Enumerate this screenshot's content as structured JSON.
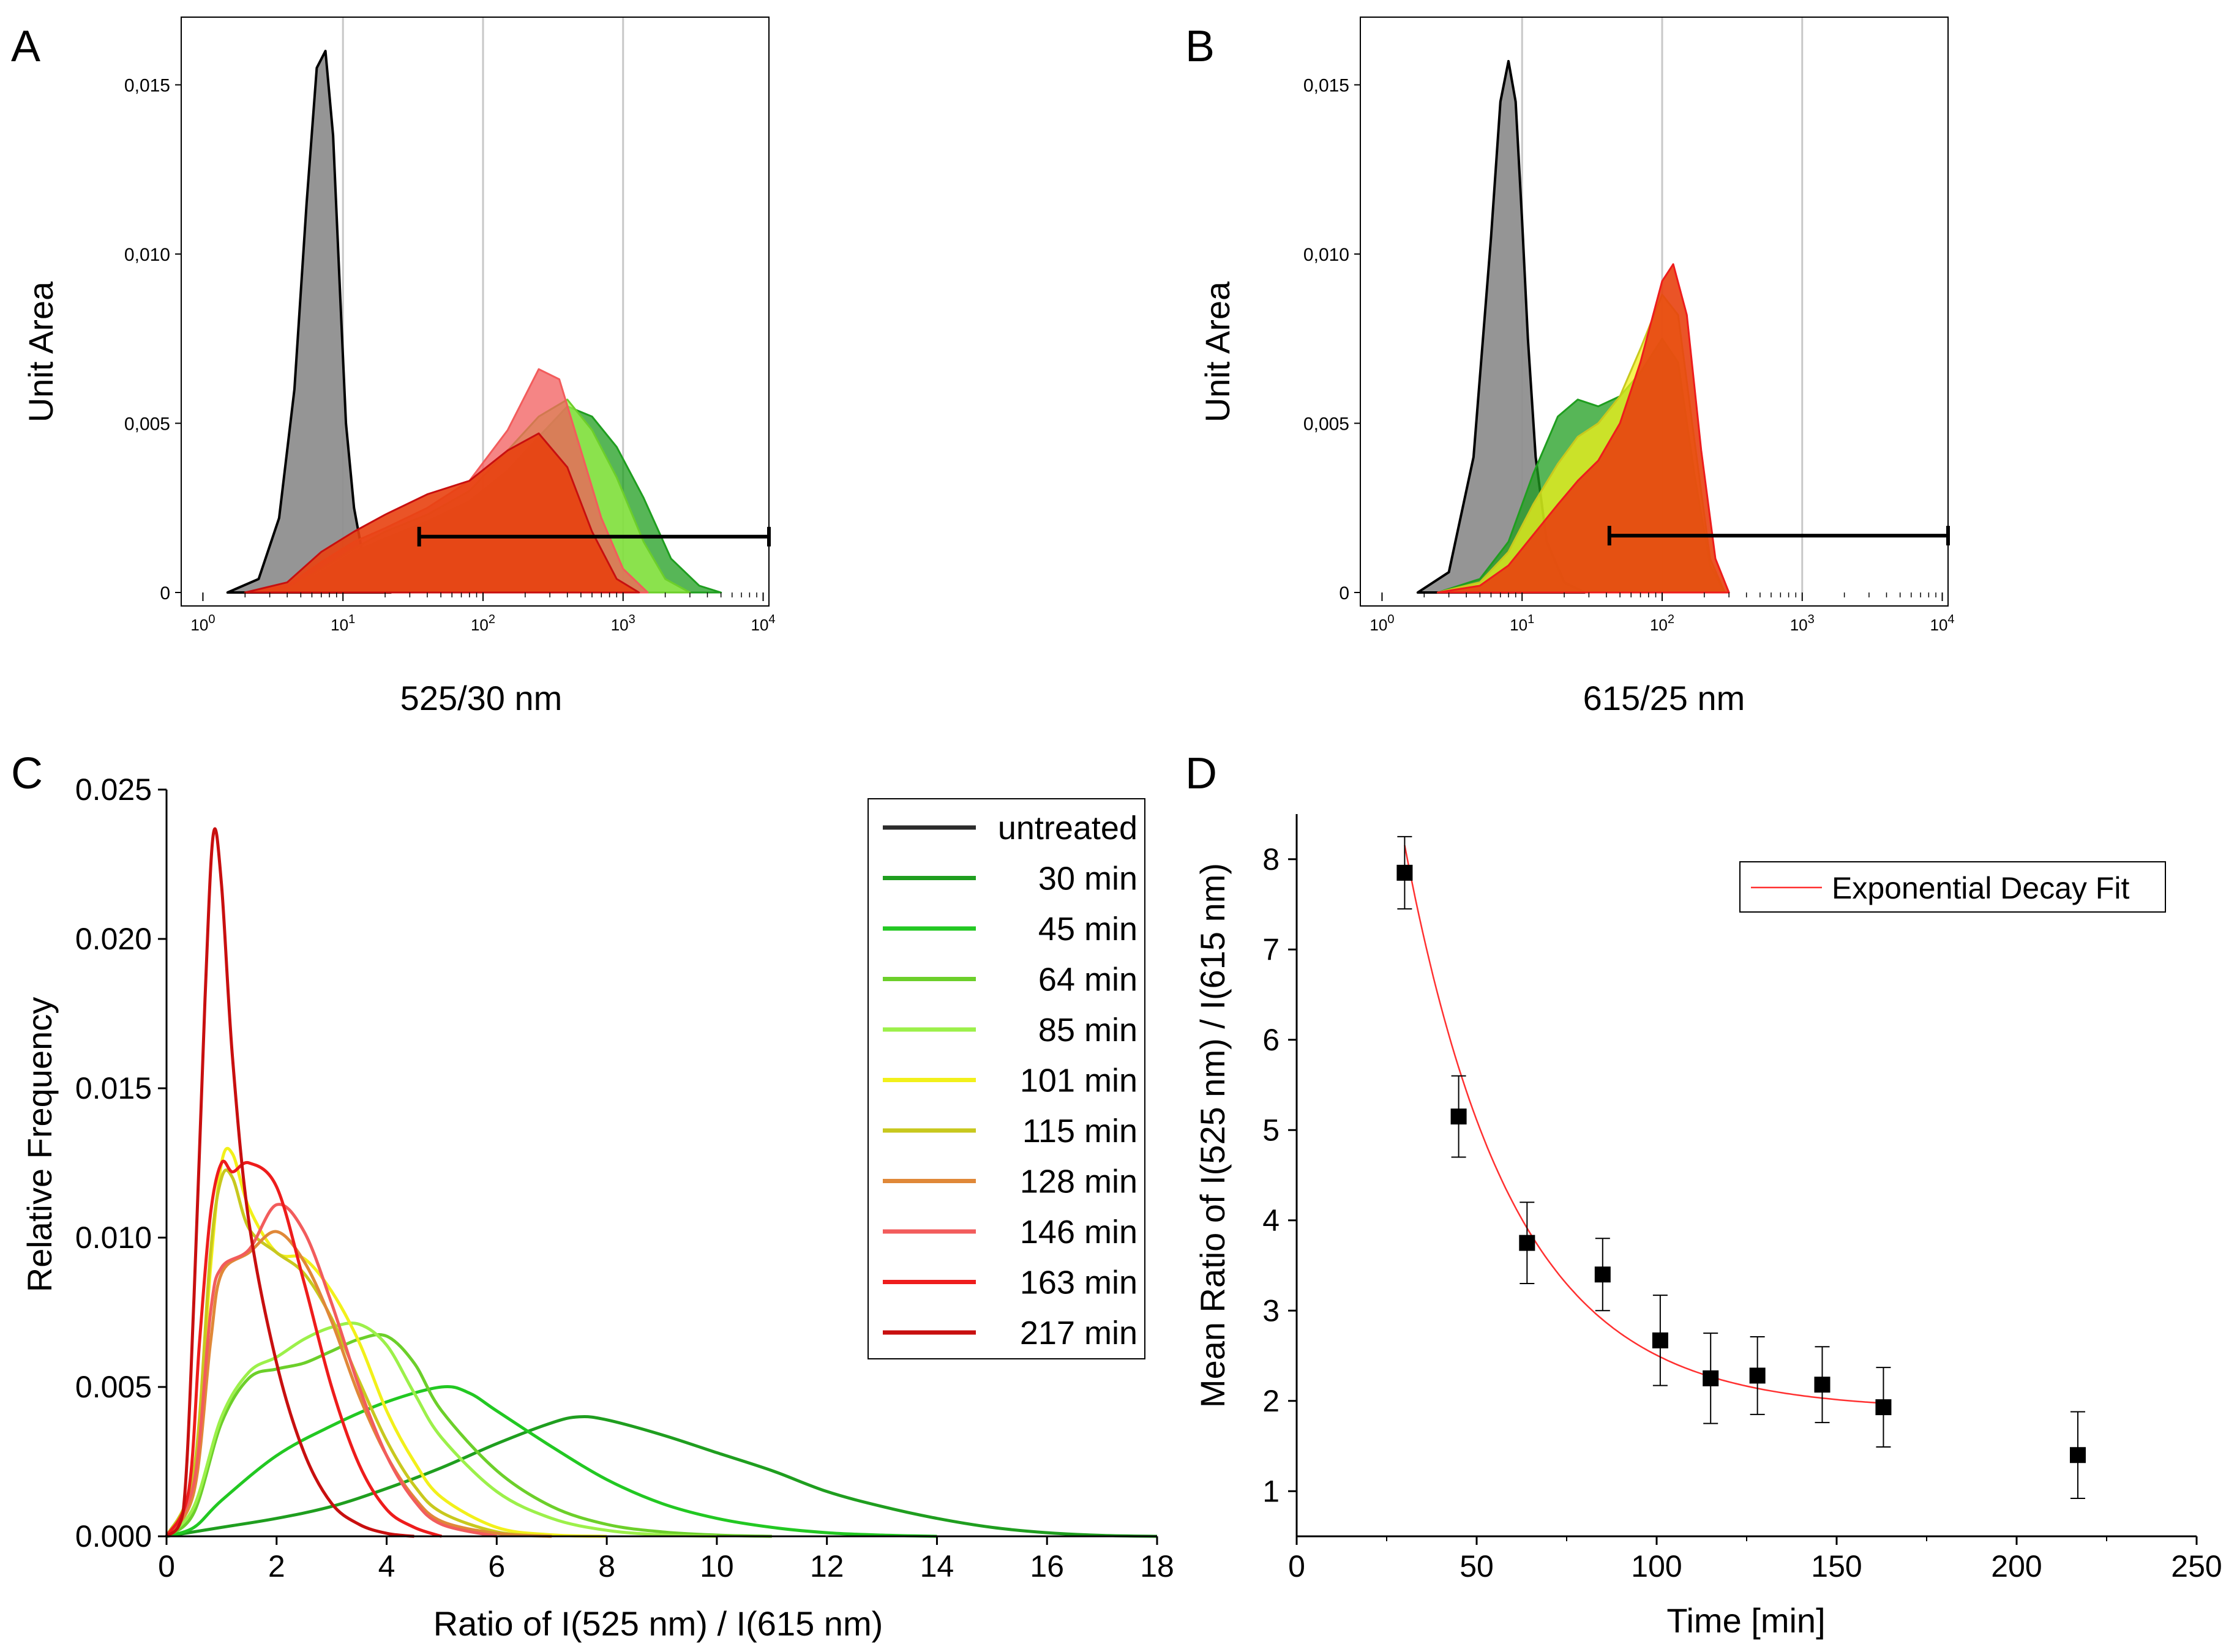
{
  "colors": {
    "untreated": "#2b2b2b",
    "t30": "#1f9e1f",
    "t45": "#22c822",
    "t64": "#6ccf2a",
    "t85": "#9cf04a",
    "t101": "#f2f01a",
    "t115": "#c8c81e",
    "t128": "#e08838",
    "t146": "#f25c5c",
    "t163": "#ee1c1c",
    "t217": "#c80f0f",
    "fit": "#ff3030",
    "hist_gray": "#8f8f8f",
    "hist_red": "#e8410f"
  },
  "chart_data": [
    {
      "panel": "A",
      "label": "A",
      "type": "area",
      "title": "",
      "xlabel": "525/30 nm",
      "ylabel": "Unit Area",
      "xscale": "log",
      "xlim": [
        0.7,
        11000
      ],
      "ylim": [
        0,
        0.017
      ],
      "yticks": [
        {
          "v": 0,
          "label": "0"
        },
        {
          "v": 0.005,
          "label": "0,005"
        },
        {
          "v": 0.01,
          "label": "0,010"
        },
        {
          "v": 0.015,
          "label": "0,015"
        }
      ],
      "xticks": [
        {
          "v": 1,
          "base": "10",
          "exp": "0"
        },
        {
          "v": 10,
          "base": "10",
          "exp": "1"
        },
        {
          "v": 100,
          "base": "10",
          "exp": "2"
        },
        {
          "v": 1000,
          "base": "10",
          "exp": "3"
        },
        {
          "v": 10000,
          "base": "10",
          "exp": "4"
        }
      ],
      "gridlines_x": [
        10,
        100,
        1000
      ],
      "gate": {
        "x_start": 35,
        "x_end": 11000,
        "y": 0.00165
      },
      "series": [
        {
          "name": "untreated",
          "x": [
            1.5,
            2.5,
            3.5,
            4.5,
            5.5,
            6.5,
            7.5,
            8.5,
            9.5,
            10.5,
            12,
            14,
            17,
            22
          ],
          "y": [
            0,
            0.0004,
            0.0022,
            0.006,
            0.0115,
            0.0155,
            0.016,
            0.0135,
            0.009,
            0.005,
            0.0025,
            0.001,
            0.0003,
            0
          ]
        },
        {
          "name": "30 min",
          "x": [
            2,
            4,
            7,
            12,
            20,
            40,
            80,
            150,
            250,
            400,
            600,
            900,
            1400,
            2200,
            3500,
            5000
          ],
          "y": [
            0,
            0.0001,
            0.0006,
            0.0012,
            0.0016,
            0.0021,
            0.0027,
            0.0036,
            0.0046,
            0.0055,
            0.0052,
            0.0043,
            0.0028,
            0.001,
            0.0002,
            0
          ]
        },
        {
          "name": "85 min",
          "x": [
            2,
            4,
            7,
            12,
            20,
            40,
            80,
            150,
            250,
            400,
            600,
            900,
            1400,
            2000,
            3000
          ],
          "y": [
            0,
            0.0001,
            0.0007,
            0.0013,
            0.0018,
            0.0023,
            0.003,
            0.0042,
            0.0052,
            0.0057,
            0.0048,
            0.0034,
            0.0015,
            0.0004,
            0
          ]
        },
        {
          "name": "146 min",
          "x": [
            2,
            4,
            7,
            12,
            20,
            40,
            80,
            150,
            250,
            350,
            500,
            700,
            1000,
            1500
          ],
          "y": [
            0,
            0.0002,
            0.0009,
            0.0015,
            0.0019,
            0.0025,
            0.0033,
            0.0048,
            0.0066,
            0.0063,
            0.0042,
            0.0022,
            0.0007,
            0
          ]
        },
        {
          "name": "217 min",
          "x": [
            2,
            4,
            7,
            12,
            20,
            40,
            80,
            150,
            250,
            400,
            600,
            900,
            1300
          ],
          "y": [
            0,
            0.0003,
            0.0012,
            0.0018,
            0.0023,
            0.0029,
            0.0033,
            0.0042,
            0.0047,
            0.0037,
            0.0018,
            0.0004,
            0
          ]
        }
      ]
    },
    {
      "panel": "B",
      "label": "B",
      "type": "area",
      "title": "",
      "xlabel": "615/25 nm",
      "ylabel": "Unit Area",
      "xscale": "log",
      "xlim": [
        0.7,
        11000
      ],
      "ylim": [
        0,
        0.017
      ],
      "yticks": [
        {
          "v": 0,
          "label": "0"
        },
        {
          "v": 0.005,
          "label": "0,005"
        },
        {
          "v": 0.01,
          "label": "0,010"
        },
        {
          "v": 0.015,
          "label": "0,015"
        }
      ],
      "xticks": [
        {
          "v": 1,
          "base": "10",
          "exp": "0"
        },
        {
          "v": 10,
          "base": "10",
          "exp": "1"
        },
        {
          "v": 100,
          "base": "10",
          "exp": "2"
        },
        {
          "v": 1000,
          "base": "10",
          "exp": "3"
        },
        {
          "v": 10000,
          "base": "10",
          "exp": "4"
        }
      ],
      "gridlines_x": [
        10,
        100,
        1000
      ],
      "gate": {
        "x_start": 42,
        "x_end": 11000,
        "y": 0.00168
      },
      "series": [
        {
          "name": "untreated",
          "x": [
            1.8,
            3,
            4.5,
            6,
            7,
            8,
            9,
            10,
            11,
            12.5,
            15,
            20,
            28
          ],
          "y": [
            0,
            0.0006,
            0.004,
            0.0105,
            0.0145,
            0.0157,
            0.0145,
            0.011,
            0.0075,
            0.004,
            0.0015,
            0.0003,
            0
          ]
        },
        {
          "name": "30 min",
          "x": [
            2.5,
            5,
            8,
            12,
            18,
            25,
            35,
            50,
            70,
            100,
            130,
            170,
            220,
            280
          ],
          "y": [
            0,
            0.0004,
            0.0015,
            0.0035,
            0.0052,
            0.0057,
            0.0055,
            0.0058,
            0.0065,
            0.0075,
            0.0068,
            0.0035,
            0.0008,
            0
          ]
        },
        {
          "name": "101 min",
          "x": [
            2.5,
            5,
            8,
            12,
            18,
            25,
            35,
            50,
            70,
            100,
            130,
            170,
            220,
            280
          ],
          "y": [
            0,
            0.0003,
            0.0012,
            0.0026,
            0.0038,
            0.0046,
            0.005,
            0.0058,
            0.0072,
            0.0088,
            0.0082,
            0.0045,
            0.001,
            0
          ]
        },
        {
          "name": "163 min",
          "x": [
            2.5,
            5,
            8,
            12,
            18,
            25,
            35,
            50,
            70,
            100,
            120,
            150,
            190,
            240,
            300
          ],
          "y": [
            0,
            0.0002,
            0.0008,
            0.0017,
            0.0026,
            0.0033,
            0.0039,
            0.005,
            0.0068,
            0.0092,
            0.0097,
            0.0082,
            0.0042,
            0.001,
            0
          ]
        }
      ]
    },
    {
      "panel": "C",
      "label": "C",
      "type": "line",
      "title": "",
      "xlabel": "Ratio of I(525 nm) / I(615 nm)",
      "ylabel": "Relative Frequency",
      "xlim": [
        0,
        18
      ],
      "ylim": [
        0,
        0.025
      ],
      "xticks": [
        0,
        2,
        4,
        6,
        8,
        10,
        12,
        14,
        16,
        18
      ],
      "yticks": [
        {
          "v": 0,
          "label": "0.000"
        },
        {
          "v": 0.005,
          "label": "0.005"
        },
        {
          "v": 0.01,
          "label": "0.010"
        },
        {
          "v": 0.015,
          "label": "0.015"
        },
        {
          "v": 0.02,
          "label": "0.020"
        },
        {
          "v": 0.025,
          "label": "0.025"
        }
      ],
      "legend": [
        "untreated",
        "30 min",
        "45 min",
        "64 min",
        "85 min",
        "101 min",
        "115 min",
        "128 min",
        "146 min",
        "163 min",
        "217 min"
      ],
      "series": [
        {
          "name": "untreated",
          "x": [
            0,
            18
          ],
          "y": [
            0,
            0
          ]
        },
        {
          "name": "30 min",
          "x": [
            0,
            1,
            2,
            3,
            4,
            5,
            6,
            7,
            7.5,
            8,
            9,
            10,
            11,
            12,
            13,
            14,
            15,
            16,
            17,
            18
          ],
          "y": [
            0,
            0.0003,
            0.0006,
            0.001,
            0.0016,
            0.0023,
            0.0031,
            0.0038,
            0.004,
            0.0039,
            0.0034,
            0.0028,
            0.0022,
            0.0015,
            0.001,
            0.0006,
            0.0003,
            0.00012,
            3e-05,
            0
          ]
        },
        {
          "name": "45 min",
          "x": [
            0,
            0.5,
            1,
            2,
            3,
            4,
            5,
            5.5,
            6,
            7,
            8,
            9,
            10,
            11,
            12,
            13,
            14
          ],
          "y": [
            0,
            0.0003,
            0.0012,
            0.0027,
            0.0037,
            0.0045,
            0.005,
            0.0048,
            0.0042,
            0.003,
            0.0019,
            0.0011,
            0.0006,
            0.0003,
            0.00012,
            4e-05,
            0
          ]
        },
        {
          "name": "64 min",
          "x": [
            0,
            0.5,
            1,
            1.5,
            2,
            2.5,
            3,
            3.5,
            4,
            4.5,
            5,
            6,
            7,
            8,
            9,
            10,
            11
          ],
          "y": [
            0,
            0.0008,
            0.0038,
            0.0053,
            0.0056,
            0.0058,
            0.0062,
            0.0066,
            0.0067,
            0.0058,
            0.0042,
            0.0022,
            0.001,
            0.0004,
            0.00015,
            4e-05,
            0
          ]
        },
        {
          "name": "85 min",
          "x": [
            0,
            0.5,
            1,
            1.5,
            2,
            2.5,
            3,
            3.5,
            4,
            4.5,
            5,
            6,
            7,
            8,
            9,
            10
          ],
          "y": [
            0,
            0.001,
            0.004,
            0.0055,
            0.006,
            0.0066,
            0.007,
            0.0071,
            0.0064,
            0.0048,
            0.0033,
            0.0015,
            0.0006,
            0.0002,
            5e-05,
            0
          ]
        },
        {
          "name": "101 min",
          "x": [
            0,
            0.5,
            0.8,
            1,
            1.2,
            1.5,
            2,
            2.5,
            3,
            3.5,
            4,
            4.5,
            5,
            6,
            7,
            8
          ],
          "y": [
            0,
            0.002,
            0.009,
            0.0125,
            0.0128,
            0.011,
            0.0095,
            0.0093,
            0.0082,
            0.0065,
            0.0042,
            0.0025,
            0.0013,
            0.0003,
            5e-05,
            0
          ]
        },
        {
          "name": "115 min",
          "x": [
            0,
            0.5,
            0.8,
            1,
            1.2,
            1.5,
            2,
            2.5,
            3,
            3.5,
            4,
            4.5,
            5,
            6,
            7
          ],
          "y": [
            0,
            0.0022,
            0.0095,
            0.012,
            0.012,
            0.0103,
            0.0095,
            0.0088,
            0.0073,
            0.0052,
            0.0032,
            0.0017,
            0.0008,
            0.00015,
            0
          ]
        },
        {
          "name": "128 min",
          "x": [
            0,
            0.5,
            0.8,
            1,
            1.5,
            2,
            2.5,
            3,
            3.5,
            4,
            4.5,
            5,
            6,
            7
          ],
          "y": [
            0,
            0.0015,
            0.0065,
            0.0088,
            0.0095,
            0.0102,
            0.0092,
            0.0072,
            0.0047,
            0.0027,
            0.0013,
            0.0005,
            0.0001,
            0
          ]
        },
        {
          "name": "146 min",
          "x": [
            0,
            0.5,
            0.8,
            1,
            1.5,
            2,
            2.5,
            3,
            3.5,
            4,
            4.5,
            5,
            6
          ],
          "y": [
            0,
            0.0018,
            0.0075,
            0.009,
            0.0096,
            0.0111,
            0.0102,
            0.0078,
            0.005,
            0.0027,
            0.0012,
            0.0004,
            0
          ]
        },
        {
          "name": "163 min",
          "x": [
            0,
            0.4,
            0.6,
            0.8,
            1,
            1.2,
            1.5,
            2,
            2.5,
            3,
            3.5,
            4,
            4.5,
            5
          ],
          "y": [
            0,
            0.0015,
            0.0065,
            0.0108,
            0.0125,
            0.0122,
            0.0125,
            0.0117,
            0.0085,
            0.005,
            0.0024,
            0.0009,
            0.0003,
            0
          ]
        },
        {
          "name": "217 min",
          "x": [
            0,
            0.3,
            0.5,
            0.7,
            0.85,
            1,
            1.2,
            1.5,
            2,
            2.5,
            3,
            3.5,
            4,
            4.5
          ],
          "y": [
            0,
            0.0008,
            0.008,
            0.018,
            0.0235,
            0.0218,
            0.016,
            0.0105,
            0.0058,
            0.0028,
            0.0011,
            0.0004,
            0.0001,
            0
          ]
        }
      ]
    },
    {
      "panel": "D",
      "label": "D",
      "type": "scatter",
      "title": "",
      "xlabel": "Time [min]",
      "ylabel": "Mean Ratio of I(525 nm) / I(615 nm)",
      "xlim": [
        0,
        250
      ],
      "ylim": [
        0.5,
        8.5
      ],
      "xticks": [
        0,
        50,
        100,
        150,
        200,
        250
      ],
      "yticks": [
        1,
        2,
        3,
        4,
        5,
        6,
        7,
        8
      ],
      "legend": [
        "Exponential Decay Fit"
      ],
      "points": {
        "x": [
          30,
          45,
          64,
          85,
          101,
          115,
          128,
          146,
          163,
          217
        ],
        "y": [
          7.85,
          5.15,
          3.75,
          3.4,
          2.67,
          2.25,
          2.28,
          2.18,
          1.93,
          1.4
        ],
        "err": [
          0.4,
          0.45,
          0.45,
          0.4,
          0.5,
          0.5,
          0.43,
          0.42,
          0.44,
          0.48
        ]
      },
      "fit": {
        "name": "Exponential Decay Fit",
        "y0": 1.9,
        "A": 17.0,
        "t": 30,
        "x_start": 30,
        "x_end": 163
      }
    }
  ]
}
